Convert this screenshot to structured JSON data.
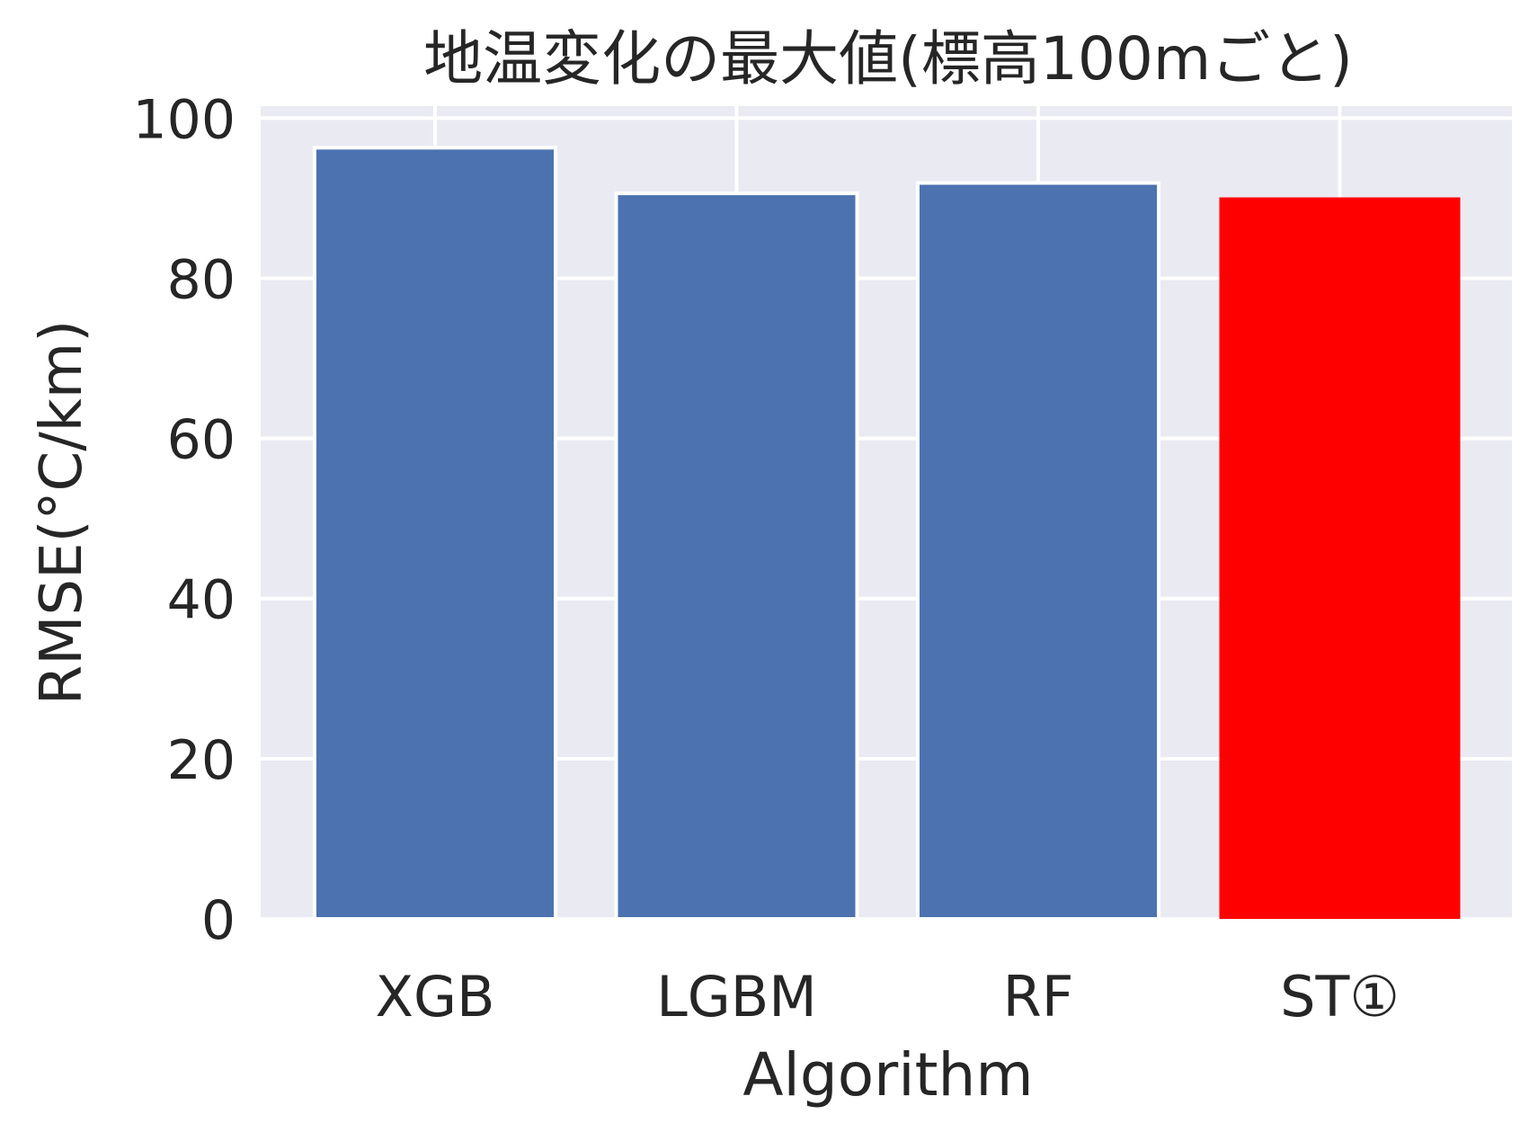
{
  "chart_data": {
    "type": "bar",
    "title": "地温変化の最大値(標高100mごと)",
    "xlabel": "Algorithm",
    "ylabel": "RMSE(°C/km)",
    "categories": [
      "XGB",
      "LGBM",
      "RF",
      "ST①"
    ],
    "values": [
      96.3,
      90.6,
      91.9,
      90.1
    ],
    "bar_colors": [
      "#4C72B0",
      "#4C72B0",
      "#4C72B0",
      "#FF0000"
    ],
    "ylim": [
      0,
      101.5
    ],
    "yticks": [
      0,
      20,
      40,
      60,
      80,
      100
    ],
    "grid": true,
    "legend": "none",
    "background_color": "#EAEAF2",
    "grid_color": "#FFFFFF"
  }
}
